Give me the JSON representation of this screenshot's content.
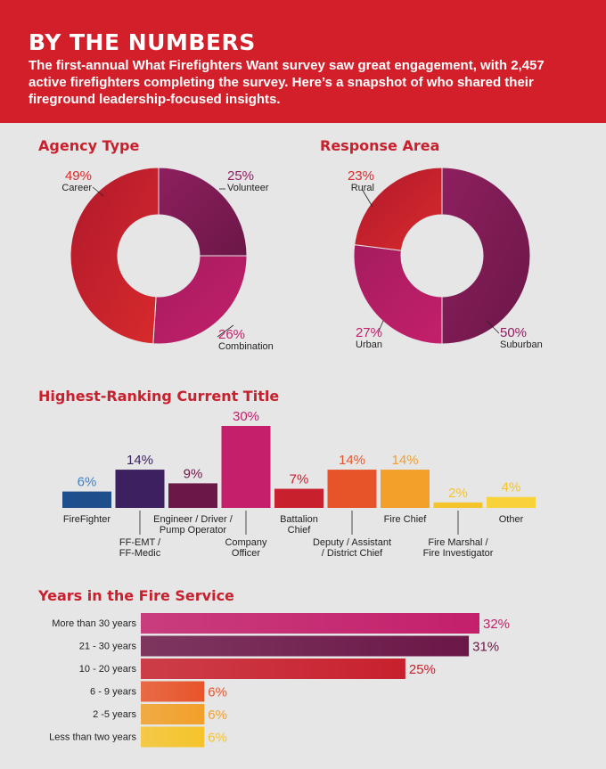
{
  "header": {
    "title": "BY THE NUMBERS",
    "intro": "The first-annual What Firefighters Want survey saw great engagement, with 2,457 active firefighters completing the survey. Here’s a snapshot of who shared their fireground leadership-focused insights."
  },
  "colors": {
    "header_red": "#d21f2a",
    "section_title": "#c8202d",
    "background": "#e6e6e7"
  },
  "chart_data": [
    {
      "type": "pie",
      "title": "Agency Type",
      "donut": true,
      "slices": [
        {
          "label": "Volunteer",
          "value": 25,
          "pct_label": "25%",
          "color": "#6b1747",
          "color2": "#8e1f5f"
        },
        {
          "label": "Combination",
          "value": 26,
          "pct_label": "26%",
          "color": "#c41f6b",
          "color2": "#a51c5f"
        },
        {
          "label": "Career",
          "value": 49,
          "pct_label": "49%",
          "color": "#d82a2c",
          "color2": "#b0192b"
        }
      ]
    },
    {
      "type": "pie",
      "title": "Response Area",
      "donut": true,
      "slices": [
        {
          "label": "Suburban",
          "value": 50,
          "pct_label": "50%",
          "color": "#6b1747",
          "color2": "#8e1f5f"
        },
        {
          "label": "Urban",
          "value": 27,
          "pct_label": "27%",
          "color": "#c41f6b",
          "color2": "#a51c5f"
        },
        {
          "label": "Rural",
          "value": 23,
          "pct_label": "23%",
          "color": "#d82a2c",
          "color2": "#b0192b"
        }
      ]
    },
    {
      "type": "bar",
      "title": "Highest-Ranking Current Title",
      "categories": [
        "FireFighter",
        "FF-EMT / FF-Medic",
        "Engineer / Driver / Pump Operator",
        "Company Officer",
        "Battalion Chief",
        "Deputy / Assistant / District Chief",
        "Fire Chief",
        "Fire Marshal / Fire Investigator",
        "Other"
      ],
      "label_lines": [
        [
          "FireFighter"
        ],
        [
          "FF-EMT /",
          "FF-Medic"
        ],
        [
          "Engineer / Driver /",
          "Pump Operator"
        ],
        [
          "Company",
          "Officer"
        ],
        [
          "Battalion",
          "Chief"
        ],
        [
          "Deputy / Assistant",
          "/ District Chief"
        ],
        [
          "Fire Chief"
        ],
        [
          "Fire Marshal /",
          "Fire Investigator"
        ],
        [
          "Other"
        ]
      ],
      "label_position": [
        "below",
        "low",
        "below",
        "low",
        "below",
        "low",
        "below",
        "low",
        "below"
      ],
      "values": [
        6,
        14,
        9,
        30,
        7,
        14,
        14,
        2,
        4
      ],
      "pct_labels": [
        "6%",
        "14%",
        "9%",
        "30%",
        "7%",
        "14%",
        "14%",
        "2%",
        "4%"
      ],
      "colors": [
        "#1f4e8c",
        "#3d2060",
        "#6b1747",
        "#c41f6b",
        "#c8202d",
        "#e8542a",
        "#f2a029",
        "#f5c42b",
        "#f7d23a"
      ],
      "label_colors": [
        "#3e7fc6",
        "#3d2060",
        "#6b1747",
        "#c41f6b",
        "#c8202d",
        "#e8542a",
        "#f2a029",
        "#f5c42b",
        "#f5c42b"
      ]
    },
    {
      "type": "bar",
      "orientation": "horizontal",
      "title": "Years in the Fire Service",
      "categories": [
        "More than 30 years",
        "21 - 30 years",
        "10 - 20 years",
        "6 - 9 years",
        "2 -5 years",
        "Less than two years"
      ],
      "values": [
        32,
        31,
        25,
        6,
        6,
        6
      ],
      "pct_labels": [
        "32%",
        "31%",
        "25%",
        "6%",
        "6%",
        "6%"
      ],
      "colors": [
        "#c41f6b",
        "#6b1747",
        "#c8202d",
        "#e8542a",
        "#f2a029",
        "#f5c42b"
      ],
      "label_colors": [
        "#c41f6b",
        "#6b1747",
        "#c8202d",
        "#e8542a",
        "#f2a029",
        "#f5c42b"
      ]
    }
  ]
}
